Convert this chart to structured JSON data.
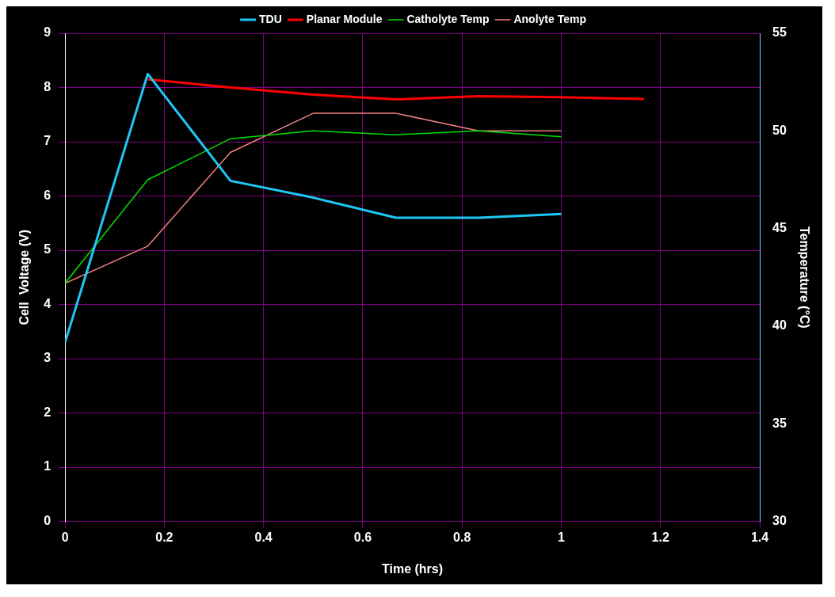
{
  "chart_data": {
    "type": "line",
    "xlabel": "Time (hrs)",
    "ylabel": "Cell  Voltage (V)",
    "y2label": "Temperature (°C)",
    "xlim": [
      0,
      1.4
    ],
    "xticks": [
      0,
      0.2,
      0.4,
      0.6,
      0.8,
      1,
      1.2,
      1.4
    ],
    "ylim": [
      0,
      9
    ],
    "yticks": [
      0,
      1,
      2,
      3,
      4,
      5,
      6,
      7,
      8,
      9
    ],
    "y2lim": [
      30,
      55
    ],
    "y2ticks": [
      30,
      35,
      40,
      45,
      50,
      55
    ],
    "grid": true,
    "legend": "top",
    "marker": "none",
    "series": [
      {
        "name": "TDU",
        "color": "#1ec8f5",
        "x": [
          0,
          0.1667,
          0.3333,
          0.5,
          0.6667,
          0.8333,
          1
        ],
        "values": [
          3.3,
          8.25,
          6.28,
          5.97,
          5.6,
          5.6,
          5.67
        ]
      },
      {
        "name": "Planar Module",
        "color": "#ff0000",
        "x": [
          0.1667,
          0.3333,
          0.5,
          0.6667,
          0.8333,
          1,
          1.1667
        ],
        "values": [
          8.15,
          8.0,
          7.87,
          7.78,
          7.84,
          7.82,
          7.79
        ]
      },
      {
        "name": "Catholyte Temp",
        "color": "#00e000",
        "axis": "y2",
        "x": [
          0,
          0.1667,
          0.3333,
          0.5,
          0.6667,
          0.8333,
          1
        ],
        "values": [
          42.2,
          47.5,
          49.6,
          50.0,
          49.8,
          50.0,
          49.7
        ]
      },
      {
        "name": "Anolyte Temp",
        "color": "#f08080",
        "axis": "y2",
        "x": [
          0,
          0.1667,
          0.3333,
          0.5,
          0.6667,
          0.8333,
          1
        ],
        "values": [
          42.2,
          44.1,
          48.9,
          50.9,
          50.9,
          50.0,
          50.0
        ]
      }
    ]
  }
}
